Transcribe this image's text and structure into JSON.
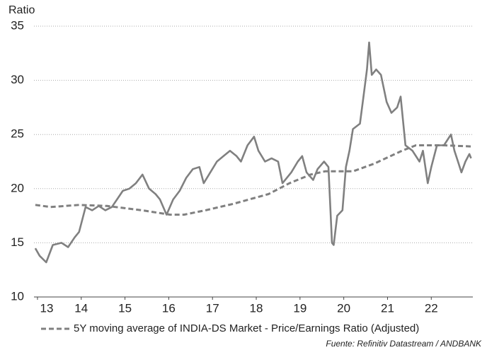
{
  "chart_data": {
    "type": "line",
    "y_label": "Ratio",
    "source": "Fuente: Refinitiv Datastream / ANDBANK",
    "xlim": [
      2013.42,
      2023.45
    ],
    "ylim": [
      10,
      35
    ],
    "yticks": [
      10,
      15,
      20,
      25,
      30,
      35
    ],
    "xticks": [
      {
        "value": 2013.5,
        "label": "13"
      },
      {
        "value": 2014.5,
        "label": "14"
      },
      {
        "value": 2015.5,
        "label": "15"
      },
      {
        "value": 2016.5,
        "label": "16"
      },
      {
        "value": 2017.5,
        "label": "17"
      },
      {
        "value": 2018.5,
        "label": "18"
      },
      {
        "value": 2019.5,
        "label": "19"
      },
      {
        "value": 2020.5,
        "label": "20"
      },
      {
        "value": 2021.5,
        "label": "21"
      },
      {
        "value": 2022.5,
        "label": "22"
      }
    ],
    "grid": true,
    "legend": "bottom",
    "series": [
      {
        "color": "#808080",
        "dashed": false,
        "x": [
          2013.45,
          2013.55,
          2013.7,
          2013.85,
          2014.05,
          2014.2,
          2014.35,
          2014.45,
          2014.6,
          2014.75,
          2014.9,
          2015.05,
          2015.2,
          2015.35,
          2015.45,
          2015.6,
          2015.75,
          2015.9,
          2016.05,
          2016.2,
          2016.3,
          2016.45,
          2016.6,
          2016.75,
          2016.9,
          2017.05,
          2017.2,
          2017.3,
          2017.45,
          2017.6,
          2017.75,
          2017.9,
          2018.05,
          2018.15,
          2018.3,
          2018.45,
          2018.55,
          2018.7,
          2018.85,
          2019.0,
          2019.1,
          2019.3,
          2019.45,
          2019.55,
          2019.65,
          2019.8,
          2019.9,
          2020.05,
          2020.15,
          2020.23,
          2020.27,
          2020.35,
          2020.47,
          2020.55,
          2020.63,
          2020.71,
          2020.87,
          2020.95,
          2021.03,
          2021.08,
          2021.14,
          2021.24,
          2021.35,
          2021.48,
          2021.59,
          2021.72,
          2021.8,
          2021.91,
          2022.07,
          2022.23,
          2022.31,
          2022.42,
          2022.5,
          2022.63,
          2022.79,
          2022.95,
          2023.03,
          2023.11,
          2023.19,
          2023.28,
          2023.37,
          2023.41
        ],
        "values": [
          14.5,
          13.8,
          13.2,
          14.8,
          15.0,
          14.6,
          15.5,
          16.0,
          18.3,
          18.0,
          18.4,
          18.0,
          18.3,
          19.2,
          19.8,
          20.0,
          20.5,
          21.3,
          20.0,
          19.5,
          19.0,
          17.6,
          19.0,
          19.8,
          21.0,
          21.8,
          22.0,
          20.5,
          21.5,
          22.5,
          23.0,
          23.5,
          23.0,
          22.5,
          24.0,
          24.8,
          23.5,
          22.5,
          22.8,
          22.5,
          20.5,
          21.5,
          22.5,
          23.0,
          21.5,
          20.8,
          21.8,
          22.5,
          22.0,
          15.0,
          14.8,
          17.5,
          18.0,
          22.0,
          23.5,
          25.5,
          26.0,
          28.5,
          31.0,
          33.5,
          30.5,
          31.0,
          30.5,
          28.0,
          27.0,
          27.5,
          28.5,
          24.0,
          23.5,
          22.5,
          23.5,
          20.5,
          22.0,
          24.0,
          24.0,
          25.0,
          23.5,
          22.5,
          21.5,
          22.5,
          23.2,
          22.8
        ]
      },
      {
        "name": "5Y moving average of INDIA-DS Market - Price/Earnings Ratio (Adjusted)",
        "color": "#808080",
        "dashed": true,
        "x": [
          2013.45,
          2013.8,
          2014.45,
          2015.09,
          2015.89,
          2016.53,
          2016.85,
          2017.34,
          2017.98,
          2018.78,
          2019.26,
          2019.74,
          2020.07,
          2020.71,
          2021.19,
          2021.83,
          2022.15,
          2022.79,
          2023.41
        ],
        "values": [
          18.5,
          18.3,
          18.5,
          18.4,
          18.0,
          17.6,
          17.6,
          18.0,
          18.6,
          19.5,
          20.5,
          21.3,
          21.6,
          21.6,
          22.3,
          23.5,
          24.0,
          24.0,
          23.9
        ]
      }
    ]
  }
}
